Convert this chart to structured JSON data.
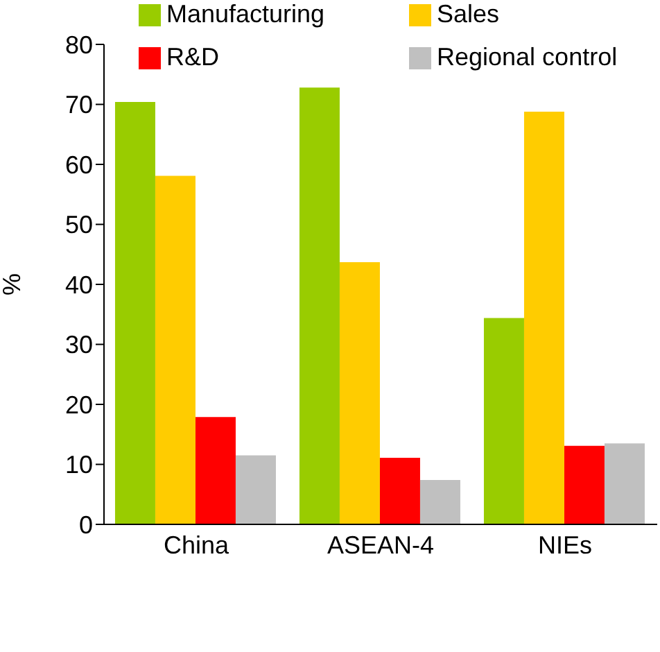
{
  "chart_data": {
    "type": "bar",
    "ylabel": "%",
    "categories": [
      "China",
      "ASEAN-4",
      "NIEs"
    ],
    "series": [
      {
        "name": "Manufacturing",
        "color": "#99cc00",
        "values": [
          70.4,
          72.8,
          34.4
        ]
      },
      {
        "name": "Sales",
        "color": "#ffcc00",
        "values": [
          58.1,
          43.7,
          68.8
        ]
      },
      {
        "name": "R&D",
        "color": "#ff0000",
        "values": [
          17.9,
          11.1,
          13.1
        ]
      },
      {
        "name": "Regional control",
        "color": "#c0c0c0",
        "values": [
          11.5,
          7.4,
          13.5
        ]
      }
    ],
    "ylim": [
      0,
      80
    ],
    "yticks": [
      0,
      10,
      20,
      30,
      40,
      50,
      60,
      70,
      80
    ],
    "grid": false,
    "legend": "top"
  }
}
